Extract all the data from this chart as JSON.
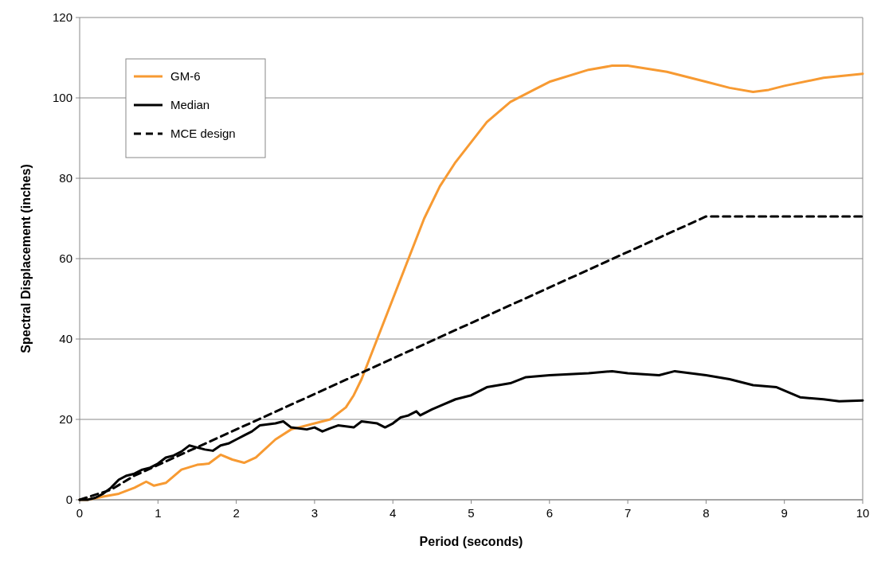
{
  "chart_data": {
    "type": "line",
    "xlabel": "Period (seconds)",
    "ylabel": "Spectral Displacement (inches)",
    "xlim": [
      0,
      10
    ],
    "xticks": [
      0,
      1,
      2,
      3,
      4,
      5,
      6,
      7,
      8,
      9,
      10
    ],
    "ylim": [
      0,
      120
    ],
    "yticks": [
      0,
      20,
      40,
      60,
      80,
      100,
      120
    ],
    "grid": "y",
    "legend": "top left",
    "marker": "none",
    "series": [
      {
        "name": "GM-6",
        "color": "#f79a32",
        "line_style": "solid",
        "x": [
          0,
          0.1,
          0.3,
          0.5,
          0.7,
          0.85,
          0.95,
          1.1,
          1.3,
          1.5,
          1.65,
          1.8,
          1.95,
          2.1,
          2.25,
          2.5,
          2.7,
          3.0,
          3.2,
          3.4,
          3.5,
          3.6,
          3.7,
          3.8,
          4.0,
          4.2,
          4.4,
          4.6,
          4.8,
          5.0,
          5.2,
          5.5,
          5.8,
          6.0,
          6.5,
          6.8,
          7.0,
          7.5,
          8.0,
          8.3,
          8.6,
          8.8,
          9.0,
          9.5,
          10
        ],
        "values": [
          0,
          0,
          0.8,
          1.5,
          3,
          4.5,
          3.5,
          4.2,
          7.5,
          8.7,
          9,
          11.2,
          10,
          9.2,
          10.5,
          15,
          17.5,
          19,
          20,
          23,
          26,
          30,
          35,
          40,
          50,
          60,
          70,
          78,
          84,
          89,
          94,
          99,
          102,
          104,
          107,
          108,
          108,
          106.5,
          104,
          102.5,
          101.5,
          102,
          103,
          105,
          106
        ]
      },
      {
        "name": "Median",
        "color": "#000000",
        "line_style": "solid",
        "x": [
          0,
          0.1,
          0.2,
          0.3,
          0.4,
          0.5,
          0.6,
          0.7,
          0.8,
          0.9,
          1.0,
          1.1,
          1.2,
          1.3,
          1.4,
          1.5,
          1.6,
          1.7,
          1.8,
          1.9,
          2.0,
          2.1,
          2.2,
          2.3,
          2.5,
          2.6,
          2.7,
          2.9,
          3.0,
          3.1,
          3.2,
          3.3,
          3.5,
          3.6,
          3.8,
          3.9,
          4.0,
          4.1,
          4.2,
          4.3,
          4.35,
          4.5,
          4.8,
          5.0,
          5.2,
          5.5,
          5.7,
          6.0,
          6.5,
          6.8,
          7.0,
          7.4,
          7.6,
          8.0,
          8.3,
          8.6,
          8.9,
          9.2,
          9.5,
          9.7,
          10
        ],
        "values": [
          0,
          0,
          0.5,
          1.5,
          3,
          5,
          6,
          6.5,
          7.5,
          8,
          9,
          10.5,
          11,
          12,
          13.5,
          13,
          12.5,
          12.2,
          13.5,
          14,
          15,
          16,
          17,
          18.5,
          19,
          19.5,
          18,
          17.5,
          18,
          17,
          17.8,
          18.5,
          18,
          19.5,
          19,
          18,
          19,
          20.5,
          21,
          22,
          21,
          22.5,
          25,
          26,
          28,
          29,
          30.5,
          31,
          31.5,
          32,
          31.5,
          31,
          32,
          31,
          30,
          28.5,
          28,
          25.5,
          25,
          24.5,
          24.7
        ]
      },
      {
        "name": "MCE design",
        "color": "#000000",
        "line_style": "dashed",
        "x": [
          0,
          0.4,
          0.7,
          8,
          10
        ],
        "values": [
          0,
          2.5,
          6,
          70.5,
          70.5
        ]
      }
    ]
  }
}
